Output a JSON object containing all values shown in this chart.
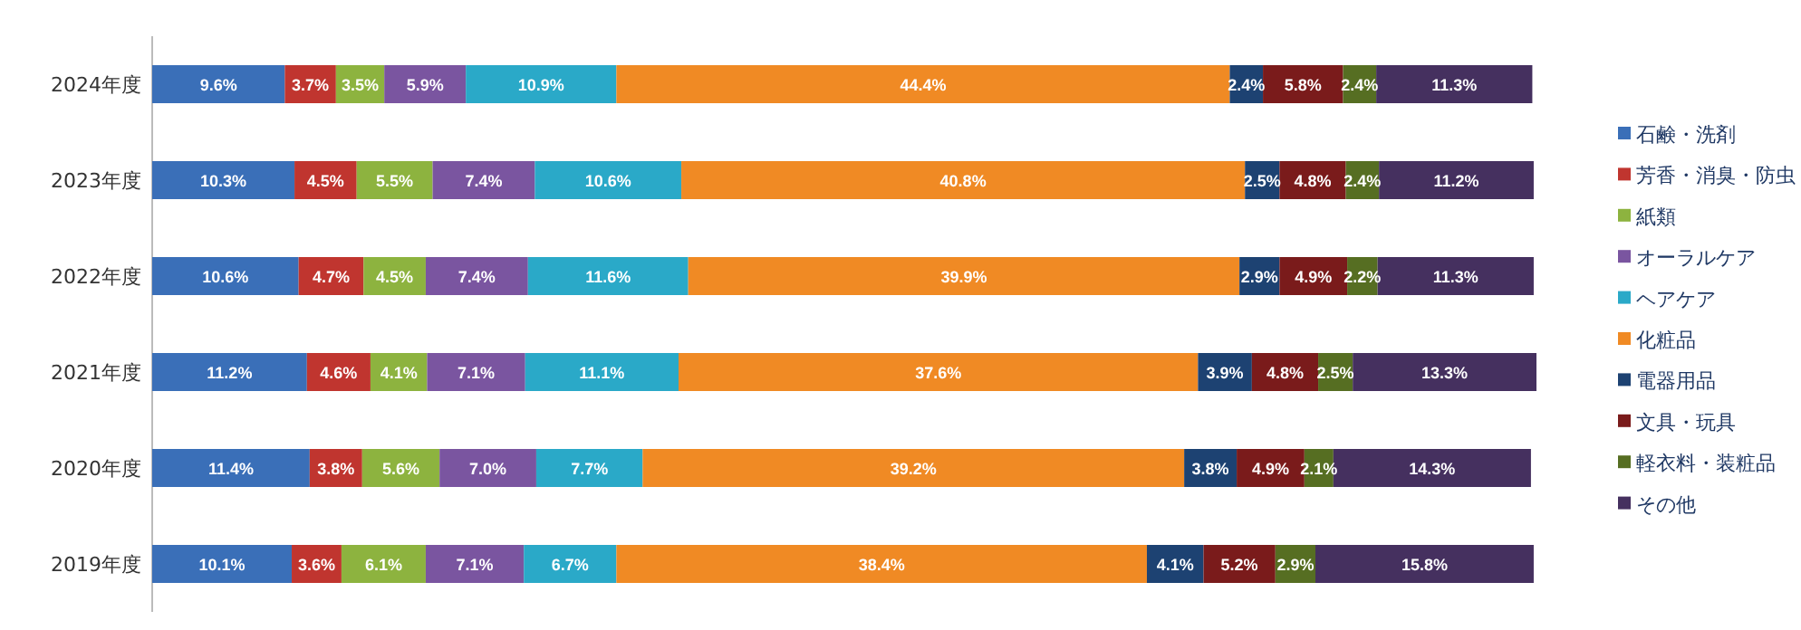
{
  "chart_data": {
    "type": "bar",
    "orientation": "horizontal",
    "stacked": true,
    "legend": "right",
    "categories": [
      "2024年度",
      "2023年度",
      "2022年度",
      "2021年度",
      "2020年度",
      "2019年度"
    ],
    "series": [
      {
        "name": "石鹸・洗剤",
        "color": "#3a6fb8",
        "values": [
          9.6,
          10.3,
          10.6,
          11.2,
          11.4,
          10.1
        ],
        "value_labels": [
          "9.6%",
          "10.3%",
          "10.6%",
          "11.2%",
          "11.4%",
          "10.1%"
        ]
      },
      {
        "name": "芳香・消臭・防虫",
        "color": "#c0352f",
        "values": [
          3.7,
          4.5,
          4.7,
          4.6,
          3.8,
          3.6
        ],
        "value_labels": [
          "3.7%",
          "4.5%",
          "4.7%",
          "4.6%",
          "3.8%",
          "3.6%"
        ]
      },
      {
        "name": "紙類",
        "color": "#8db33f",
        "values": [
          3.5,
          5.5,
          4.5,
          4.1,
          5.6,
          6.1
        ],
        "value_labels": [
          "3.5%",
          "5.5%",
          "4.5%",
          "4.1%",
          "5.6%",
          "6.1%"
        ]
      },
      {
        "name": "オーラルケア",
        "color": "#7a55a0",
        "values": [
          5.9,
          7.4,
          7.4,
          7.1,
          7.0,
          7.1
        ],
        "value_labels": [
          "5.9%",
          "7.4%",
          "7.4%",
          "7.1%",
          "7.0%",
          "7.1%"
        ]
      },
      {
        "name": "ヘアケア",
        "color": "#2aa9c8",
        "values": [
          10.9,
          10.6,
          11.6,
          11.1,
          7.7,
          6.7
        ],
        "value_labels": [
          "10.9%",
          "10.6%",
          "11.6%",
          "11.1%",
          "7.7%",
          "6.7%"
        ]
      },
      {
        "name": "化粧品",
        "color": "#f08a24",
        "values": [
          44.4,
          40.8,
          39.9,
          37.6,
          39.2,
          38.4
        ],
        "value_labels": [
          "44.4%",
          "40.8%",
          "39.9%",
          "37.6%",
          "39.2%",
          "38.4%"
        ]
      },
      {
        "name": "電器用品",
        "color": "#1d4272",
        "values": [
          2.4,
          2.5,
          2.9,
          3.9,
          3.8,
          4.1
        ],
        "value_labels": [
          "2.4%",
          "2.5%",
          "2.9%",
          "3.9%",
          "3.8%",
          "4.1%"
        ]
      },
      {
        "name": "文具・玩具",
        "color": "#7a1b1b",
        "values": [
          5.8,
          4.8,
          4.9,
          4.8,
          4.9,
          5.2
        ],
        "value_labels": [
          "5.8%",
          "4.8%",
          "4.9%",
          "4.8%",
          "4.9%",
          "5.2%"
        ]
      },
      {
        "name": "軽衣料・装粧品",
        "color": "#566e22",
        "values": [
          2.4,
          2.4,
          2.2,
          2.5,
          2.1,
          2.9
        ],
        "value_labels": [
          "2.4%",
          "2.4%",
          "2.2%",
          "2.5%",
          "2.1%",
          "2.9%"
        ]
      },
      {
        "name": "その他",
        "color": "#45305f",
        "values": [
          11.3,
          11.2,
          11.3,
          13.3,
          14.3,
          15.8
        ],
        "value_labels": [
          "11.3%",
          "11.2%",
          "11.3%",
          "13.3%",
          "14.3%",
          "15.8%"
        ]
      }
    ]
  }
}
